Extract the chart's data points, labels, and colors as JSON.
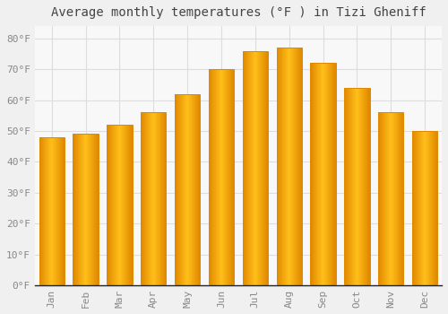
{
  "title": "Average monthly temperatures (°F ) in Tizi Gheniff",
  "months": [
    "Jan",
    "Feb",
    "Mar",
    "Apr",
    "May",
    "Jun",
    "Jul",
    "Aug",
    "Sep",
    "Oct",
    "Nov",
    "Dec"
  ],
  "values": [
    48,
    49,
    52,
    56,
    62,
    70,
    76,
    77,
    72,
    64,
    56,
    50
  ],
  "bar_color": "#FFAA00",
  "bar_edge_color": "#E08800",
  "background_color": "#F0F0F0",
  "plot_bg_color": "#F8F8F8",
  "grid_color": "#DDDDDD",
  "tick_label_color": "#888888",
  "title_color": "#444444",
  "axis_color": "#222222",
  "ylim": [
    0,
    84
  ],
  "yticks": [
    0,
    10,
    20,
    30,
    40,
    50,
    60,
    70,
    80
  ],
  "ytick_labels": [
    "0°F",
    "10°F",
    "20°F",
    "30°F",
    "40°F",
    "50°F",
    "60°F",
    "70°F",
    "80°F"
  ],
  "title_fontsize": 10,
  "tick_fontsize": 8,
  "bar_width": 0.75
}
